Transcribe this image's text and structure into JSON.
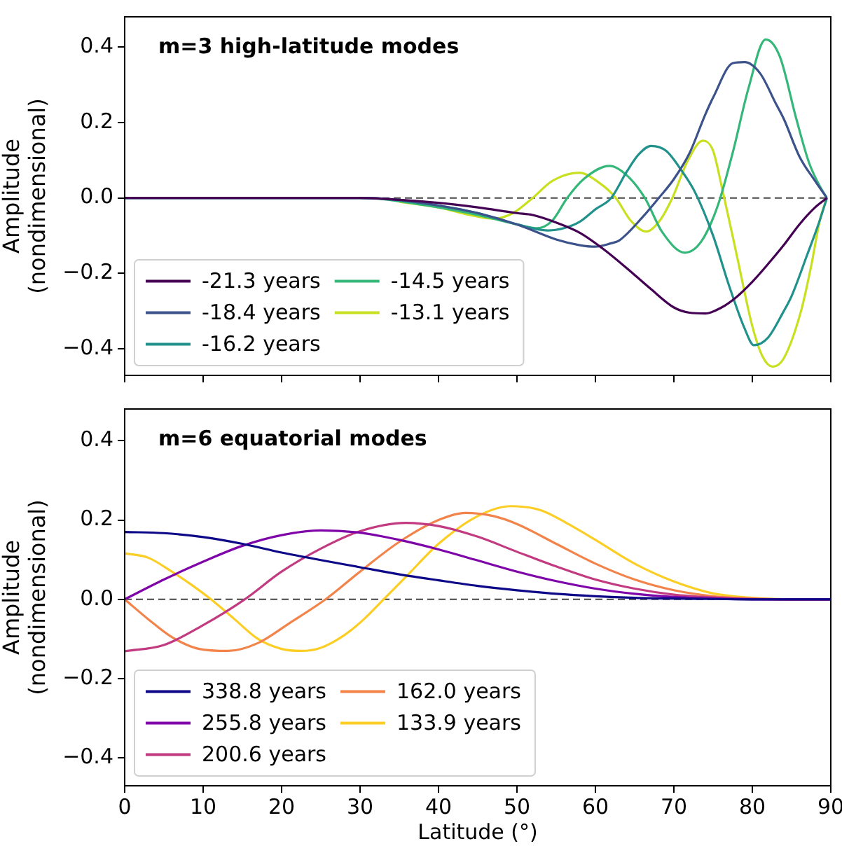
{
  "chart_data": [
    {
      "type": "line",
      "title": "m=3 high-latitude modes",
      "ylabel": "Amplitude (nondimensional)",
      "xlim": [
        0,
        90
      ],
      "xticks": [
        0,
        10,
        20,
        30,
        40,
        50,
        60,
        70,
        80,
        90
      ],
      "ylim": [
        -0.47,
        0.48
      ],
      "yticks": [
        {
          "value": -0.4,
          "label": "−0.4"
        },
        {
          "value": -0.2,
          "label": "−0.2"
        },
        {
          "value": 0,
          "label": "0.0"
        },
        {
          "value": 0.2,
          "label": "0.2"
        },
        {
          "value": 0.4,
          "label": "0.4"
        }
      ],
      "tick_labels": "y",
      "grid": false,
      "legend": "bottom left",
      "marker": "none",
      "line_style": "solid",
      "ref_lines": [
        {
          "axis": "y",
          "value": 0,
          "color": "#444444",
          "line_style": "dashed"
        }
      ],
      "series": [
        {
          "name": "-21.3 years",
          "color": "#440154",
          "x": [
            0,
            30,
            35,
            40,
            45,
            50,
            52,
            55,
            58,
            61,
            64,
            67,
            70,
            72,
            74,
            76,
            78,
            80,
            82,
            84,
            86,
            88,
            89.5
          ],
          "values": [
            0,
            0,
            -0.005,
            -0.013,
            -0.025,
            -0.04,
            -0.045,
            -0.065,
            -0.092,
            -0.135,
            -0.186,
            -0.24,
            -0.29,
            -0.304,
            -0.306,
            -0.291,
            -0.262,
            -0.222,
            -0.175,
            -0.125,
            -0.07,
            -0.025,
            0
          ]
        },
        {
          "name": "-18.4 years",
          "color": "#3b528b",
          "x": [
            0,
            30,
            35,
            40,
            45,
            50,
            52,
            55,
            58,
            60,
            62,
            63,
            66,
            68,
            70,
            72,
            74,
            75,
            77.5,
            79,
            81,
            83,
            84,
            86,
            88,
            89.5
          ],
          "values": [
            0,
            0,
            -0.005,
            -0.02,
            -0.04,
            -0.07,
            -0.086,
            -0.11,
            -0.125,
            -0.129,
            -0.12,
            -0.113,
            -0.051,
            -0.002,
            0.05,
            0.119,
            0.221,
            0.266,
            0.357,
            0.36,
            0.33,
            0.25,
            0.21,
            0.11,
            0.045,
            0
          ]
        },
        {
          "name": "-16.2 years",
          "color": "#21918c",
          "x": [
            0,
            30,
            40,
            45,
            50,
            54,
            56,
            58,
            60,
            62,
            64,
            65.5,
            67.1,
            69,
            71,
            72.7,
            75,
            77,
            79,
            80.2,
            82,
            84,
            85,
            87,
            88.5,
            89.5
          ],
          "values": [
            0,
            0,
            -0.02,
            -0.04,
            -0.07,
            -0.086,
            -0.08,
            -0.063,
            -0.03,
            0,
            0.07,
            0.115,
            0.138,
            0.125,
            0.072,
            0.015,
            -0.1,
            -0.23,
            -0.345,
            -0.39,
            -0.37,
            -0.3,
            -0.26,
            -0.15,
            -0.065,
            0
          ]
        },
        {
          "name": "-14.5 years",
          "color": "#35b779",
          "x": [
            0,
            30,
            40,
            45,
            50,
            52.5,
            54.5,
            56.4,
            58.5,
            61.8,
            64,
            66.3,
            68.5,
            71.4,
            73.5,
            75.6,
            77.5,
            79.5,
            81.7,
            83.5,
            85.6,
            87.2,
            88.5,
            89.5
          ],
          "values": [
            0,
            0,
            -0.025,
            -0.045,
            -0.07,
            -0.08,
            -0.06,
            0,
            0.05,
            0.085,
            0.06,
            0,
            -0.09,
            -0.145,
            -0.115,
            -0.02,
            0.12,
            0.29,
            0.42,
            0.375,
            0.21,
            0.095,
            0.035,
            0
          ]
        },
        {
          "name": "-13.1 years",
          "color": "#c8e020",
          "x": [
            35,
            40,
            44,
            47,
            49.5,
            52,
            54.5,
            57.9,
            60.5,
            62.6,
            64.5,
            66.5,
            68.2,
            69.8,
            71.8,
            73.7,
            75,
            76.1,
            78,
            80,
            81.3,
            82.6,
            84,
            86.2,
            87.5,
            88.6,
            89.5
          ],
          "values": [
            -0.01,
            -0.025,
            -0.045,
            -0.055,
            -0.04,
            0,
            0.045,
            0.067,
            0.04,
            0,
            -0.06,
            -0.089,
            -0.06,
            0,
            0.1,
            0.152,
            0.125,
            0.03,
            -0.15,
            -0.34,
            -0.42,
            -0.447,
            -0.425,
            -0.3,
            -0.18,
            -0.06,
            0
          ]
        }
      ]
    },
    {
      "type": "line",
      "title": "m=6 equatorial modes",
      "xlabel": "Latitude (°)",
      "ylabel": "Amplitude (nondimensional)",
      "xlim": [
        0,
        90
      ],
      "xticks": [
        0,
        10,
        20,
        30,
        40,
        50,
        60,
        70,
        80,
        90
      ],
      "ylim": [
        -0.47,
        0.48
      ],
      "yticks": [
        {
          "value": -0.4,
          "label": "−0.4"
        },
        {
          "value": -0.2,
          "label": "−0.2"
        },
        {
          "value": 0,
          "label": "0.0"
        },
        {
          "value": 0.2,
          "label": "0.2"
        },
        {
          "value": 0.4,
          "label": "0.4"
        }
      ],
      "grid": false,
      "legend": "bottom left",
      "marker": "none",
      "line_style": "solid",
      "ref_lines": [
        {
          "axis": "y",
          "value": 0,
          "color": "#444444",
          "line_style": "dashed"
        }
      ],
      "series": [
        {
          "name": "338.8 years",
          "color": "#0d0887",
          "x": [
            0,
            5,
            10,
            15,
            20,
            25,
            30,
            35,
            40,
            45,
            50,
            55,
            60,
            65,
            70,
            75,
            80,
            90
          ],
          "values": [
            0.17,
            0.167,
            0.157,
            0.14,
            0.118,
            0.099,
            0.081,
            0.063,
            0.048,
            0.034,
            0.023,
            0.014,
            0.008,
            0.004,
            0.002,
            0.001,
            0,
            0
          ]
        },
        {
          "name": "255.8 years",
          "color": "#7e03a8",
          "x": [
            0,
            5,
            10,
            15,
            20,
            25,
            30,
            35,
            40,
            45,
            50,
            55,
            60,
            65,
            70,
            75,
            80,
            90
          ],
          "values": [
            0,
            0.05,
            0.095,
            0.135,
            0.162,
            0.174,
            0.168,
            0.15,
            0.126,
            0.098,
            0.07,
            0.046,
            0.027,
            0.014,
            0.006,
            0.002,
            0,
            0
          ]
        },
        {
          "name": "200.6 years",
          "color": "#c23b80",
          "x": [
            0,
            5,
            10,
            15.3,
            20,
            25,
            30,
            35.8,
            40,
            45,
            50,
            55,
            60,
            65,
            70,
            75,
            80,
            85,
            90
          ],
          "values": [
            -0.131,
            -0.115,
            -0.065,
            0,
            0.07,
            0.128,
            0.172,
            0.193,
            0.185,
            0.158,
            0.12,
            0.083,
            0.05,
            0.027,
            0.012,
            0.005,
            0.001,
            0,
            0
          ]
        },
        {
          "name": "162.0 years",
          "color": "#f2844b",
          "x": [
            0,
            3,
            6,
            9.5,
            13.2,
            17,
            21,
            25.6,
            30,
            35,
            40,
            43.4,
            47,
            50,
            55,
            60,
            65,
            70,
            75,
            80,
            85,
            90
          ],
          "values": [
            0,
            -0.05,
            -0.095,
            -0.125,
            -0.13,
            -0.11,
            -0.06,
            0,
            0.07,
            0.145,
            0.2,
            0.218,
            0.21,
            0.19,
            0.14,
            0.09,
            0.05,
            0.023,
            0.008,
            0.002,
            0,
            0
          ]
        },
        {
          "name": "133.9 years",
          "color": "#fcce25",
          "x": [
            0,
            3,
            6,
            8.5,
            11,
            14,
            17,
            20,
            22.5,
            25,
            28,
            30.5,
            33,
            36,
            40,
            45,
            49.2,
            53,
            57,
            60,
            65,
            70,
            75,
            80,
            85,
            90
          ],
          "values": [
            0.116,
            0.105,
            0.07,
            0.037,
            0,
            -0.05,
            -0.1,
            -0.125,
            -0.13,
            -0.122,
            -0.09,
            -0.05,
            0,
            0.06,
            0.14,
            0.21,
            0.235,
            0.225,
            0.185,
            0.15,
            0.09,
            0.045,
            0.015,
            0.004,
            0,
            0
          ]
        }
      ]
    }
  ]
}
